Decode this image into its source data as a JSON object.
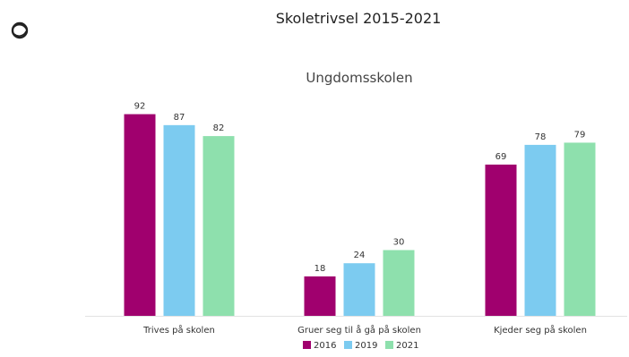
{
  "page": {
    "logo_icon": "circular-knot-logo-icon"
  },
  "chart_data": {
    "type": "bar",
    "title": "Skoletrivsel 2015-2021",
    "subtitle": "Ungdomsskolen",
    "categories": [
      "Trives på skolen",
      "Gruer seg til å gå på skolen",
      "Kjeder seg på skolen"
    ],
    "series": [
      {
        "name": "2016",
        "color": "#a0006e",
        "values": [
          92,
          18,
          69
        ]
      },
      {
        "name": "2019",
        "color": "#7ccbf0",
        "values": [
          87,
          24,
          78
        ]
      },
      {
        "name": "2021",
        "color": "#8ee0ad",
        "values": [
          82,
          30,
          79
        ]
      }
    ],
    "ylim": [
      0,
      100
    ],
    "grid": false,
    "legend_position": "bottom",
    "xlabel": "",
    "ylabel": ""
  }
}
